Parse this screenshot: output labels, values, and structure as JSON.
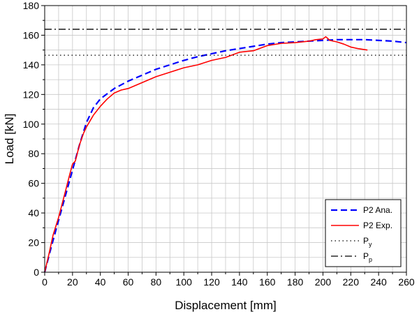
{
  "chart_data": {
    "type": "line",
    "title": "",
    "xlabel": "Displacement [mm]",
    "ylabel": "Load [kN]",
    "xlim": [
      0,
      260
    ],
    "ylim": [
      0,
      180
    ],
    "xticks": [
      0,
      20,
      40,
      60,
      80,
      100,
      120,
      140,
      160,
      180,
      200,
      220,
      240,
      260
    ],
    "yticks": [
      0,
      20,
      40,
      60,
      80,
      100,
      120,
      140,
      160,
      180
    ],
    "grid": true,
    "legend_position": "bottom-right",
    "series": [
      {
        "name": "P2 Ana.",
        "style": "dashed",
        "color": "#0000ff",
        "x": [
          0,
          5,
          10,
          15,
          20,
          25,
          30,
          35,
          40,
          50,
          60,
          70,
          80,
          90,
          100,
          110,
          120,
          130,
          140,
          150,
          160,
          170,
          180,
          190,
          200,
          210,
          220,
          230,
          240,
          250,
          260
        ],
        "y": [
          0,
          18,
          35,
          52,
          69,
          86,
          101,
          111,
          117,
          124,
          129,
          133,
          137,
          140,
          143,
          145.5,
          147.5,
          149.5,
          151,
          152.5,
          154,
          155,
          155.5,
          156,
          156.5,
          157,
          157,
          157,
          156.5,
          156,
          155
        ]
      },
      {
        "name": "P2 Exp.",
        "style": "solid",
        "color": "#ff0000",
        "x": [
          0,
          3,
          6,
          10,
          15,
          18,
          20,
          22,
          25,
          28,
          30,
          35,
          40,
          45,
          50,
          55,
          60,
          65,
          70,
          75,
          80,
          90,
          100,
          110,
          120,
          130,
          140,
          150,
          160,
          170,
          180,
          190,
          195,
          200,
          202,
          205,
          210,
          215,
          220,
          225,
          232
        ],
        "y": [
          0,
          12,
          25,
          37,
          55,
          66,
          73,
          75,
          86,
          94,
          98,
          106,
          112,
          117,
          121,
          123,
          124,
          126,
          128,
          130,
          132,
          135,
          138,
          140,
          143,
          145,
          148.5,
          149.5,
          153,
          154.5,
          155,
          156,
          157,
          157.5,
          159,
          156.5,
          155.5,
          154,
          152,
          151,
          150
        ]
      },
      {
        "name": "P_y",
        "label_main": "P",
        "label_sub": "y",
        "style": "dotted",
        "color": "#000000",
        "x": [
          0,
          260
        ],
        "y": [
          146.5,
          146.5
        ]
      },
      {
        "name": "P_p",
        "label_main": "P",
        "label_sub": "p",
        "style": "dashdot",
        "color": "#000000",
        "x": [
          0,
          260
        ],
        "y": [
          164,
          164
        ]
      }
    ]
  }
}
